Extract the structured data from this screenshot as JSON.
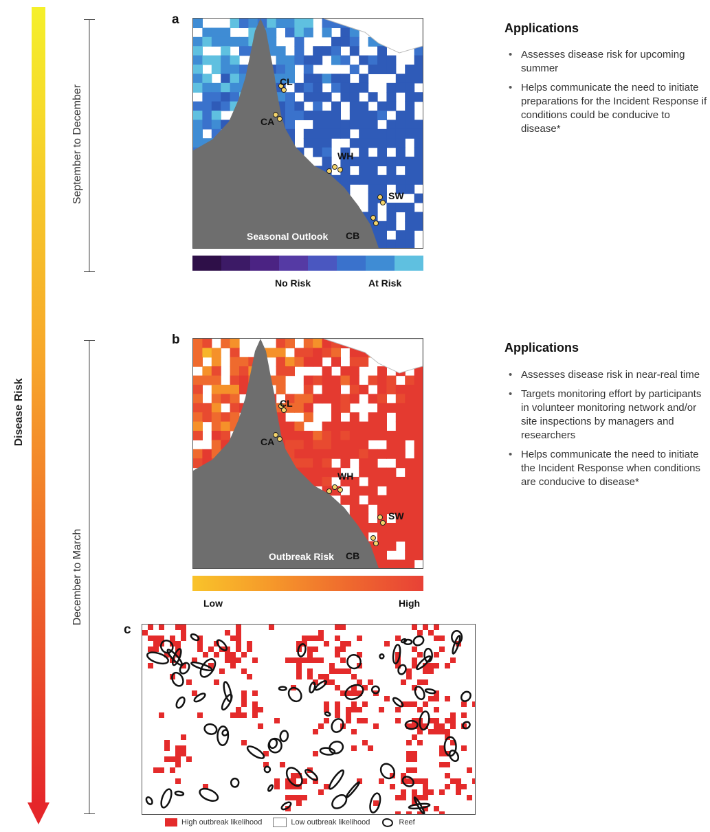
{
  "axis": {
    "title": "Disease Risk",
    "period_top": "September to December",
    "period_bottom": "December to March"
  },
  "panel_a": {
    "letter": "a",
    "map_label": "Seasonal Outlook",
    "sites": [
      "CL",
      "CA",
      "WH",
      "SW",
      "CB"
    ],
    "colorbar": {
      "colors": [
        "#2e0f48",
        "#3c1a66",
        "#4b2383",
        "#553aa4",
        "#4a57c0",
        "#3a72cc",
        "#3f8cd4",
        "#5fc0e0"
      ],
      "label_no_risk": "No Risk",
      "label_at_risk": "At Risk"
    }
  },
  "panel_b": {
    "letter": "b",
    "map_label": "Outbreak Risk",
    "sites": [
      "CL",
      "CA",
      "WH",
      "SW",
      "CB"
    ],
    "colorbar": {
      "gradient": [
        "#f9c32a",
        "#f69a2a",
        "#ef6a2e",
        "#e84136"
      ],
      "label_low": "Low",
      "label_high": "High"
    }
  },
  "panel_c": {
    "letter": "c",
    "legend": {
      "high": "High outbreak likelihood",
      "low": "Low outbreak likelihood",
      "reef": "Reef"
    }
  },
  "applications": [
    {
      "title": "Applications",
      "items": [
        "Assesses disease risk for upcoming summer",
        "Helps communicate the need to initiate preparations for the Incident Response if conditions could be conducive to disease*"
      ]
    },
    {
      "title": "Applications",
      "items": [
        "Assesses disease risk in near-real time",
        "Targets monitoring effort by participants in volunteer monitoring network and/or site inspections by managers and researchers",
        "Helps communicate the need to initiate the Incident Response when conditions are conducive to disease*"
      ]
    }
  ],
  "colors": {
    "land": "#6e6e6e",
    "arrow_top": "#f5ef2a",
    "arrow_bottom": "#e62a2a",
    "high_outbreak": "#e42b2b"
  }
}
